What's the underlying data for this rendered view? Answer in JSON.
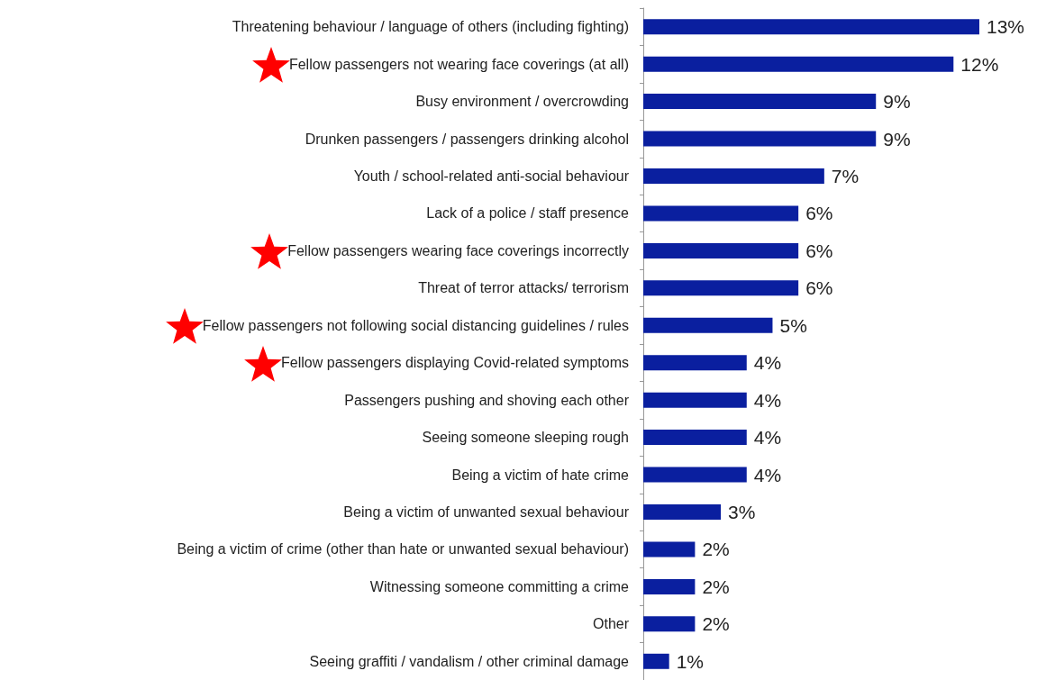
{
  "chart_data": {
    "type": "bar",
    "orientation": "horizontal",
    "categories": [
      "Threatening behaviour / language of others (including fighting)",
      "Fellow passengers not wearing face coverings (at all)",
      "Busy environment / overcrowding",
      "Drunken passengers / passengers drinking alcohol",
      "Youth / school-related anti-social behaviour",
      "Lack of a police / staff presence",
      "Fellow passengers wearing face coverings incorrectly",
      "Threat of terror attacks/ terrorism",
      "Fellow passengers not following social distancing guidelines / rules",
      "Fellow passengers displaying Covid-related symptoms",
      "Passengers pushing and shoving each other",
      "Seeing someone sleeping rough",
      "Being a victim of hate crime",
      "Being a victim of unwanted sexual behaviour",
      "Being a victim of crime (other than hate or unwanted sexual behaviour)",
      "Witnessing someone committing a crime",
      "Other",
      "Seeing graffiti / vandalism / other criminal damage"
    ],
    "values": [
      13,
      12,
      9,
      9,
      7,
      6,
      6,
      6,
      5,
      4,
      4,
      4,
      4,
      3,
      2,
      2,
      2,
      1
    ],
    "value_labels": [
      "13%",
      "12%",
      "9%",
      "9%",
      "7%",
      "6%",
      "6%",
      "6%",
      "5%",
      "4%",
      "4%",
      "4%",
      "4%",
      "3%",
      "2%",
      "2%",
      "2%",
      "1%"
    ],
    "color": "#0a1f9f"
  }
}
